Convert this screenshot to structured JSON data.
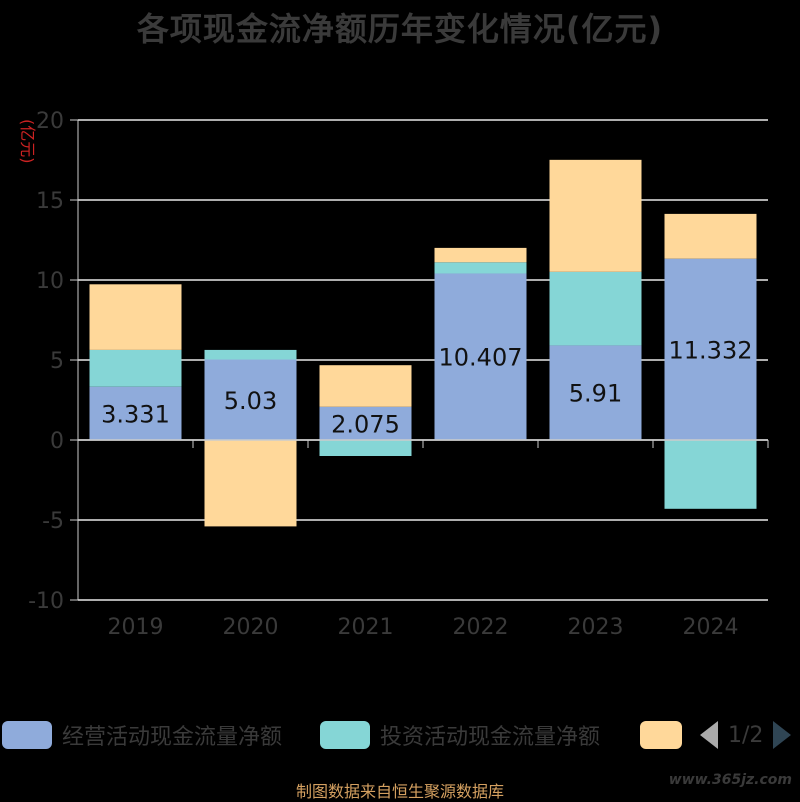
{
  "title": "各项现金流净额历年变化情况(亿元)",
  "source_text": "制图数据来自恒生聚源数据库",
  "watermark": "www.365jz.com",
  "colors": {
    "operating": "#8fabdb",
    "investing": "#85d6d6",
    "financing": "#ffd89a",
    "axis": "#cccccc",
    "grid": "#e8e8e8",
    "tick_label": "#3a3a3a",
    "unit_label": "#cc2222",
    "data_label": "#111111"
  },
  "legend": {
    "items": [
      {
        "name": "经营活动现金流量净额",
        "color": "#8fabdb"
      },
      {
        "name": "投资活动现金流量净额",
        "color": "#85d6d6"
      },
      {
        "name": "",
        "color": "#ffd89a"
      }
    ],
    "pager": "1/2"
  },
  "chart_data": {
    "type": "bar",
    "stacked": true,
    "title": "各项现金流净额历年变化情况(亿元)",
    "ylabel": "(亿元)",
    "xlabel": "",
    "ylim": [
      -10,
      20
    ],
    "yticks": [
      -10,
      -5,
      0,
      5,
      10,
      15,
      20
    ],
    "grid": true,
    "legend_position": "bottom",
    "categories": [
      "2019",
      "2020",
      "2021",
      "2022",
      "2023",
      "2024"
    ],
    "series": [
      {
        "name": "经营活动现金流量净额",
        "values": [
          3.331,
          5.03,
          2.075,
          10.407,
          5.91,
          11.332
        ],
        "data_labels": [
          "3.331",
          "5.03",
          "2.075",
          "10.407",
          "5.91",
          "11.332"
        ]
      },
      {
        "name": "投资活动现金流量净额",
        "values": [
          2.3,
          0.6,
          -1.0,
          0.7,
          4.6,
          -4.3
        ]
      },
      {
        "name": "",
        "values": [
          4.1,
          -5.4,
          2.6,
          0.9,
          7.0,
          2.8
        ]
      }
    ]
  }
}
